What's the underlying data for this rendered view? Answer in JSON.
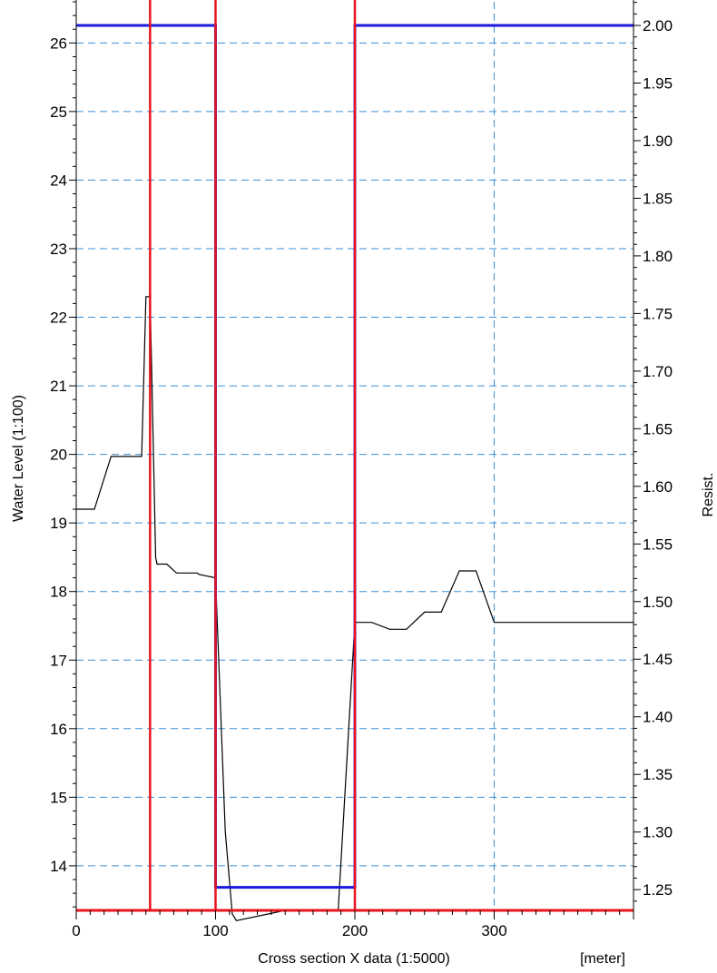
{
  "chart_data": {
    "type": "line",
    "xlabel": "Cross section X data (1:5000)",
    "x_unit": "[meter]",
    "ylabel": "Water Level (1:100)",
    "y2label": "Resist.",
    "xlim": [
      0,
      400
    ],
    "ylim": [
      13.35,
      26.6
    ],
    "y2lim": [
      1.232,
      2.0205
    ],
    "x_ticks": [
      "0",
      "100",
      "200",
      "300"
    ],
    "y_ticks": [
      "14",
      "15",
      "16",
      "17",
      "18",
      "19",
      "20",
      "21",
      "22",
      "23",
      "24",
      "25",
      "26"
    ],
    "y2_ticks": [
      "1.25",
      "1.30",
      "1.35",
      "1.40",
      "1.45",
      "1.50",
      "1.55",
      "1.60",
      "1.65",
      "1.70",
      "1.75",
      "1.80",
      "1.85",
      "1.90",
      "1.95",
      "2.00"
    ],
    "grid": true,
    "series": [
      {
        "axis": "left",
        "color": "#000000",
        "x": [
          0,
          13,
          25,
          38,
          47,
          50,
          53,
          57,
          58,
          62,
          65,
          72,
          75,
          87,
          88,
          100,
          107,
          112,
          115,
          150,
          188,
          200,
          208,
          212,
          225,
          237,
          250,
          262,
          275,
          287,
          300,
          400
        ],
        "y": [
          19.2,
          19.2,
          19.97,
          19.97,
          19.97,
          22.3,
          22.3,
          18.5,
          18.4,
          18.4,
          18.4,
          18.27,
          18.27,
          18.27,
          18.25,
          18.2,
          14.5,
          13.3,
          13.2,
          13.35,
          13.35,
          17.55,
          17.55,
          17.55,
          17.45,
          17.45,
          17.7,
          17.7,
          18.3,
          18.3,
          17.55,
          17.55
        ]
      },
      {
        "axis": "right",
        "color": "#1a1adc",
        "x": [
          0,
          100,
          100,
          200,
          200,
          400
        ],
        "y": [
          2.0,
          2.0,
          1.252,
          1.252,
          2.0,
          2.0
        ]
      }
    ],
    "markers": [
      {
        "color": "#e8141e",
        "x": 53
      },
      {
        "color": "#e8141e",
        "x": 100
      },
      {
        "color": "#e8141e",
        "x": 200
      }
    ],
    "baseline_color": "#e8141e"
  }
}
